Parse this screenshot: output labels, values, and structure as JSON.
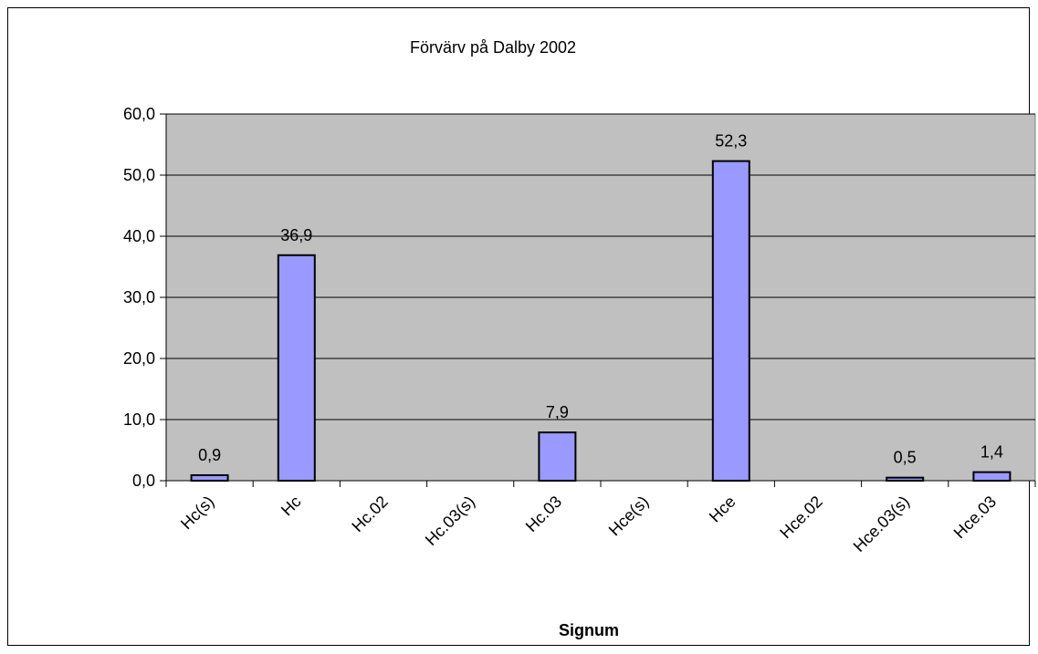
{
  "chart_data": {
    "type": "bar",
    "title": "Förvärv på Dalby 2002",
    "xlabel": "Signum",
    "ylabel": "",
    "categories": [
      "Hc(s)",
      "Hc",
      "Hc.02",
      "Hc.03(s)",
      "Hc.03",
      "Hce(s)",
      "Hce",
      "Hce.02",
      "Hce.03(s)",
      "Hce.03"
    ],
    "values": [
      0.9,
      36.9,
      0,
      0,
      7.9,
      0,
      52.3,
      0,
      0.5,
      1.4
    ],
    "data_labels": [
      "0,9",
      "36,9",
      "",
      "",
      "7,9",
      "",
      "52,3",
      "",
      "0,5",
      "1,4"
    ],
    "ylim": [
      0,
      60
    ],
    "yticks": [
      0,
      10,
      20,
      30,
      40,
      50,
      60
    ],
    "ytick_labels": [
      "0,0",
      "10,0",
      "20,0",
      "30,0",
      "40,0",
      "50,0",
      "60,0"
    ],
    "grid": true,
    "legend": "none",
    "colors": {
      "plot_background": "#c0c0c0",
      "bar_fill": "#9999ff",
      "bar_stroke": "#000000",
      "gridline": "#000000"
    }
  }
}
